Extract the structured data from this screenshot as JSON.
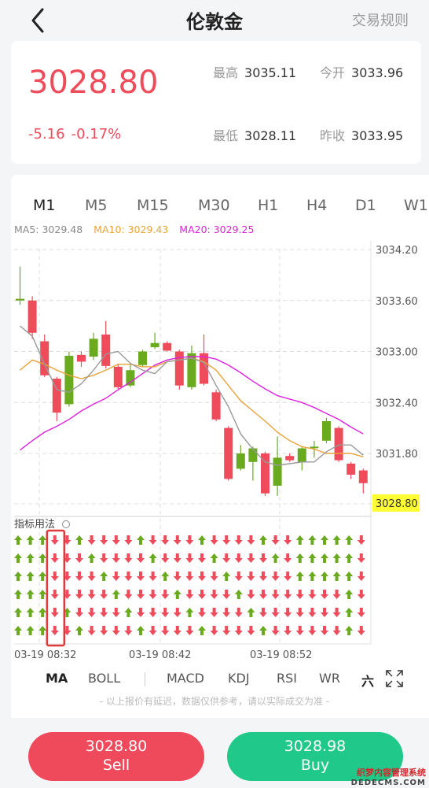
{
  "header": {
    "title": "伦敦金",
    "rules_label": "交易规则"
  },
  "quote": {
    "price": "3028.80",
    "change": "-5.16",
    "change_pct": "-0.17%",
    "high_label": "最高",
    "high": "3035.11",
    "open_label": "今开",
    "open": "3033.96",
    "low_label": "最低",
    "low": "3028.11",
    "prev_label": "昨收",
    "prev_close": "3033.95"
  },
  "periods": [
    "M1",
    "M5",
    "M15",
    "M30",
    "H1",
    "H4",
    "D1",
    "W1"
  ],
  "ma_legend": {
    "ma5": "MA5: 3029.48",
    "ma10": "MA10: 3029.43",
    "ma20": "MA20: 3029.25"
  },
  "indicator_title": "指标用法",
  "indicator_tabs": [
    "MA",
    "BOLL",
    "MACD",
    "KDJ",
    "RSI",
    "WR"
  ],
  "more_icon_label": "六",
  "disclaimer": "- 以上报价有延迟，数据仅供参考，请以实际成交为准 -",
  "sell": {
    "price": "3028.80",
    "label": "Sell"
  },
  "buy": {
    "price": "3028.98",
    "label": "Buy"
  },
  "watermark": {
    "line1": "织梦内容管理系统",
    "line2": "DEDECMS.COM"
  },
  "colors": {
    "up": "#6aaa1f",
    "down": "#ee4b5b",
    "ma5": "#999999",
    "ma10": "#e8a33a",
    "ma20": "#dd22dd",
    "last_price_bg": "#ffff33"
  },
  "chart_data": {
    "type": "candlestick",
    "price_axis_ticks": [
      3034.2,
      3033.6,
      3033.0,
      3032.4,
      3031.8
    ],
    "last_price_label": "3028.80",
    "time_labels": [
      "03-19 08:32",
      "03-19 08:42",
      "03-19 08:52"
    ],
    "candles": [
      {
        "o": 3033.6,
        "c": 3033.62,
        "h": 3034.0,
        "l": 3033.55
      },
      {
        "o": 3033.6,
        "c": 3033.22,
        "h": 3033.65,
        "l": 3033.15
      },
      {
        "o": 3033.12,
        "c": 3032.72,
        "h": 3033.2,
        "l": 3032.7
      },
      {
        "o": 3032.68,
        "c": 3032.28,
        "h": 3032.7,
        "l": 3032.18
      },
      {
        "o": 3032.38,
        "c": 3032.95,
        "h": 3033.0,
        "l": 3032.35
      },
      {
        "o": 3032.96,
        "c": 3032.88,
        "h": 3033.0,
        "l": 3032.82
      },
      {
        "o": 3032.94,
        "c": 3033.15,
        "h": 3033.22,
        "l": 3032.9
      },
      {
        "o": 3033.2,
        "c": 3032.83,
        "h": 3033.36,
        "l": 3032.8
      },
      {
        "o": 3032.82,
        "c": 3032.58,
        "h": 3032.85,
        "l": 3032.56
      },
      {
        "o": 3032.6,
        "c": 3032.78,
        "h": 3032.85,
        "l": 3032.58
      },
      {
        "o": 3032.84,
        "c": 3033.0,
        "h": 3033.02,
        "l": 3032.82
      },
      {
        "o": 3033.05,
        "c": 3033.1,
        "h": 3033.22,
        "l": 3033.03
      },
      {
        "o": 3033.1,
        "c": 3033.01,
        "h": 3033.12,
        "l": 3033.0
      },
      {
        "o": 3033.0,
        "c": 3032.6,
        "h": 3033.02,
        "l": 3032.55
      },
      {
        "o": 3032.58,
        "c": 3032.98,
        "h": 3033.07,
        "l": 3032.55
      },
      {
        "o": 3032.98,
        "c": 3032.62,
        "h": 3033.2,
        "l": 3032.6
      },
      {
        "o": 3032.52,
        "c": 3032.2,
        "h": 3032.55,
        "l": 3032.18
      },
      {
        "o": 3032.1,
        "c": 3031.5,
        "h": 3032.12,
        "l": 3031.48
      },
      {
        "o": 3031.62,
        "c": 3031.8,
        "h": 3031.9,
        "l": 3031.6
      },
      {
        "o": 3031.7,
        "c": 3031.86,
        "h": 3031.88,
        "l": 3031.48
      },
      {
        "o": 3031.8,
        "c": 3031.33,
        "h": 3031.82,
        "l": 3031.3
      },
      {
        "o": 3031.42,
        "c": 3031.75,
        "h": 3032.0,
        "l": 3031.3
      },
      {
        "o": 3031.77,
        "c": 3031.72,
        "h": 3031.8,
        "l": 3031.7
      },
      {
        "o": 3031.7,
        "c": 3031.86,
        "h": 3031.88,
        "l": 3031.6
      },
      {
        "o": 3031.88,
        "c": 3031.88,
        "h": 3031.95,
        "l": 3031.75
      },
      {
        "o": 3031.95,
        "c": 3032.18,
        "h": 3032.22,
        "l": 3031.92
      },
      {
        "o": 3032.1,
        "c": 3031.72,
        "h": 3032.12,
        "l": 3031.7
      },
      {
        "o": 3031.68,
        "c": 3031.55,
        "h": 3031.7,
        "l": 3031.5
      },
      {
        "o": 3031.6,
        "c": 3031.45,
        "h": 3031.62,
        "l": 3031.33
      }
    ],
    "ma5": [
      3033.3,
      3033.18,
      3032.85,
      3032.55,
      3032.52,
      3032.62,
      3032.78,
      3032.97,
      3033.0,
      3032.86,
      3032.78,
      3032.74,
      3032.88,
      3032.9,
      3032.92,
      3032.87,
      3032.6,
      3032.35,
      3032.03,
      3031.85,
      3031.7,
      3031.66,
      3031.68,
      3031.7,
      3031.7,
      3031.82,
      3031.9,
      3031.9,
      3031.78
    ],
    "ma10": [
      3032.78,
      3032.9,
      3032.85,
      3032.78,
      3032.72,
      3032.68,
      3032.72,
      3032.78,
      3032.85,
      3032.85,
      3032.82,
      3032.82,
      3032.88,
      3032.9,
      3032.92,
      3032.88,
      3032.78,
      3032.6,
      3032.42,
      3032.3,
      3032.18,
      3032.05,
      3031.95,
      3031.88,
      3031.85,
      3031.8,
      3031.8,
      3031.8,
      3031.76
    ],
    "ma20": [
      3031.84,
      3031.95,
      3032.05,
      3032.12,
      3032.2,
      3032.3,
      3032.38,
      3032.45,
      3032.55,
      3032.64,
      3032.74,
      3032.84,
      3032.9,
      3032.93,
      3032.94,
      3032.94,
      3032.91,
      3032.84,
      3032.75,
      3032.65,
      3032.56,
      3032.48,
      3032.44,
      3032.4,
      3032.34,
      3032.27,
      3032.2,
      3032.11,
      3032.03
    ],
    "indicator_rows": 6,
    "indicator_cols": 29,
    "indicator_up_cols": [
      0,
      1,
      2,
      27
    ],
    "highlight_col": 3
  }
}
